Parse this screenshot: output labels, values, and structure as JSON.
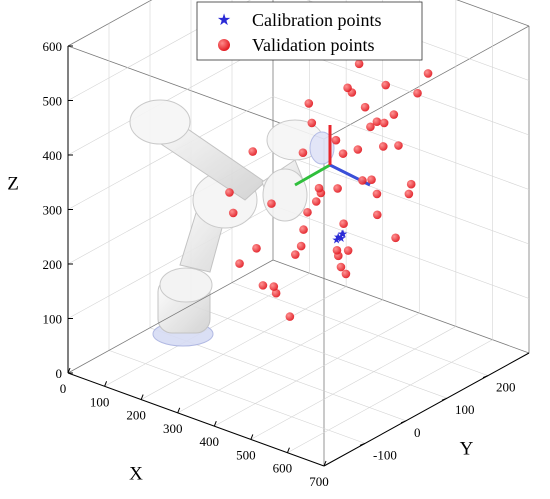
{
  "chart_data": {
    "type": "scatter",
    "legend": {
      "placement": "top-center",
      "entries": [
        {
          "label": "Calibration points",
          "marker": "star",
          "color": "#2b2bd6"
        },
        {
          "label": "Validation points",
          "marker": "circle",
          "color": "#e8262c"
        }
      ]
    },
    "axes": {
      "x": {
        "label": "X",
        "ticks": [
          0,
          100,
          200,
          300,
          400,
          500,
          600,
          700
        ],
        "range": [
          0,
          700
        ]
      },
      "y": {
        "label": "Y",
        "ticks": [
          -100,
          0,
          100,
          200
        ],
        "range": [
          -200,
          300
        ]
      },
      "z": {
        "label": "Z",
        "ticks": [
          0,
          100,
          200,
          300,
          400,
          500,
          600
        ],
        "range": [
          0,
          600
        ]
      }
    },
    "grid": true,
    "series": [
      {
        "name": "Validation points",
        "color": "#e8262c",
        "points": [
          [
            420,
            150,
            445
          ],
          [
            465,
            180,
            430
          ],
          [
            445,
            110,
            390
          ],
          [
            480,
            90,
            350
          ],
          [
            370,
            180,
            500
          ],
          [
            395,
            140,
            470
          ],
          [
            430,
            70,
            420
          ],
          [
            385,
            210,
            385
          ],
          [
            460,
            130,
            330
          ],
          [
            400,
            60,
            320
          ],
          [
            350,
            100,
            300
          ],
          [
            430,
            170,
            280
          ],
          [
            375,
            40,
            255
          ],
          [
            320,
            120,
            260
          ],
          [
            470,
            40,
            230
          ],
          [
            350,
            160,
            210
          ],
          [
            410,
            100,
            170
          ],
          [
            330,
            60,
            190
          ],
          [
            290,
            110,
            175
          ],
          [
            390,
            130,
            140
          ],
          [
            300,
            40,
            120
          ],
          [
            360,
            20,
            100
          ],
          [
            260,
            70,
            110
          ],
          [
            340,
            180,
            150
          ],
          [
            220,
            100,
            240
          ],
          [
            300,
            190,
            250
          ],
          [
            250,
            150,
            320
          ],
          [
            380,
            230,
            330
          ],
          [
            490,
            200,
            300
          ],
          [
            280,
            10,
            210
          ],
          [
            200,
            40,
            150
          ],
          [
            240,
            170,
            200
          ],
          [
            450,
            230,
            260
          ],
          [
            500,
            10,
            260
          ],
          [
            270,
            230,
            290
          ],
          [
            320,
            -10,
            160
          ],
          [
            180,
            90,
            330
          ],
          [
            210,
            200,
            380
          ],
          [
            420,
            20,
            470
          ],
          [
            510,
            120,
            520
          ],
          [
            480,
            250,
            480
          ],
          [
            440,
            260,
            430
          ],
          [
            380,
            260,
            150
          ],
          [
            330,
            260,
            180
          ],
          [
            360,
            250,
            360
          ],
          [
            150,
            60,
            260
          ],
          [
            260,
            250,
            400
          ],
          [
            300,
            270,
            330
          ],
          [
            500,
            160,
            390
          ],
          [
            250,
            -20,
            280
          ]
        ]
      },
      {
        "name": "Calibration points",
        "color": "#2b2bd6",
        "points": [
          [
            380,
            120,
            210
          ],
          [
            385,
            125,
            215
          ],
          [
            378,
            118,
            205
          ],
          [
            382,
            130,
            212
          ],
          [
            386,
            122,
            208
          ]
        ]
      }
    ]
  }
}
